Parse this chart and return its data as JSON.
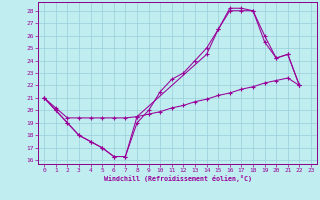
{
  "xlabel": "Windchill (Refroidissement éolien,°C)",
  "bg_color": "#c0eef0",
  "grid_color": "#98cdd8",
  "line_color": "#990099",
  "spine_color": "#880088",
  "xlim": [
    -0.5,
    23.5
  ],
  "ylim": [
    15.7,
    28.7
  ],
  "yticks": [
    16,
    17,
    18,
    19,
    20,
    21,
    22,
    23,
    24,
    25,
    26,
    27,
    28
  ],
  "xticks": [
    0,
    1,
    2,
    3,
    4,
    5,
    6,
    7,
    8,
    9,
    10,
    11,
    12,
    13,
    14,
    15,
    16,
    17,
    18,
    19,
    20,
    21,
    22,
    23
  ],
  "line1_x": [
    0,
    1,
    2,
    3,
    4,
    5,
    6,
    7,
    8,
    9,
    10,
    11,
    12,
    13,
    14,
    15,
    16,
    17,
    18,
    19,
    20,
    21,
    22
  ],
  "line1_y": [
    21.0,
    20.0,
    19.0,
    18.0,
    17.5,
    17.0,
    16.3,
    16.3,
    19.0,
    20.0,
    21.5,
    22.5,
    23.0,
    24.0,
    25.0,
    26.5,
    28.0,
    28.0,
    28.0,
    25.5,
    24.2,
    24.5,
    22.0
  ],
  "line2_x": [
    0,
    1,
    2,
    3,
    4,
    5,
    6,
    7,
    8,
    9,
    10,
    11,
    12,
    13,
    14,
    15,
    16,
    17,
    18,
    19,
    20,
    21,
    22
  ],
  "line2_y": [
    21.0,
    20.2,
    19.4,
    19.4,
    19.4,
    19.4,
    19.4,
    19.4,
    19.5,
    19.7,
    19.9,
    20.2,
    20.4,
    20.7,
    20.9,
    21.2,
    21.4,
    21.7,
    21.9,
    22.2,
    22.4,
    22.6,
    22.0
  ],
  "line3_x": [
    0,
    1,
    2,
    3,
    4,
    5,
    6,
    7,
    8,
    14,
    15,
    16,
    17,
    18,
    19,
    20,
    21,
    22
  ],
  "line3_y": [
    21.0,
    20.0,
    19.0,
    18.0,
    17.5,
    17.0,
    16.3,
    16.3,
    19.5,
    24.5,
    26.5,
    28.2,
    28.2,
    28.0,
    26.0,
    24.2,
    24.5,
    22.0
  ]
}
